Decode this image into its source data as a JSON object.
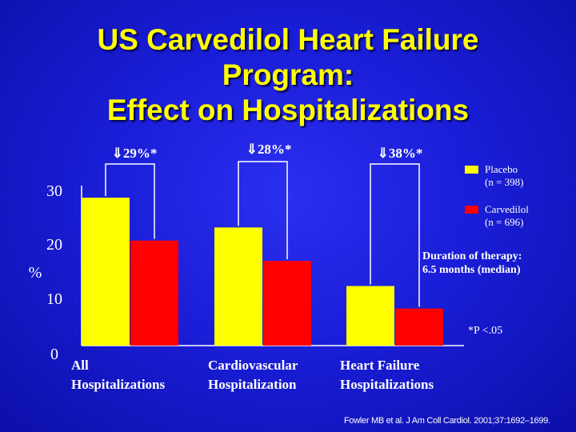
{
  "title_lines": [
    "US Carvedilol Heart Failure",
    "Program:",
    "Effect on Hospitalizations"
  ],
  "colors": {
    "placebo": "#ffff00",
    "carvedilol": "#ff0000",
    "background": "#1a1ed8",
    "text": "#ffffff"
  },
  "chart_data": {
    "type": "bar",
    "title": "US Carvedilol Heart Failure Program: Effect on Hospitalizations",
    "ylabel": "%",
    "xlabel": "",
    "ylim": [
      0,
      30
    ],
    "y_ticks": [
      "0",
      "10",
      "20",
      "30"
    ],
    "categories": [
      [
        "All",
        "Hospitalizations"
      ],
      [
        "Cardiovascular",
        "Hospitalization"
      ],
      [
        "Heart Failure",
        "Hospitalizations"
      ]
    ],
    "series": [
      {
        "name": "Placebo",
        "legend_lines": [
          "Placebo",
          "(n = 398)"
        ],
        "color": "#ffff00",
        "values": [
          28.3,
          22.6,
          11.4
        ]
      },
      {
        "name": "Carvedilol",
        "legend_lines": [
          "Carvedilol",
          "(n = 696)"
        ],
        "color": "#ff0000",
        "values": [
          20.1,
          16.2,
          7.1
        ]
      }
    ],
    "reductions": [
      "⇓29%*",
      "⇓28%*",
      "⇓38%*"
    ],
    "annotations": {
      "duration": [
        "Duration of therapy:",
        "6.5 months (median)"
      ],
      "significance": "*P <.05"
    }
  },
  "citation": "Fowler MB et al. J Am Coll Cardiol. 2001;37:1692–1699."
}
